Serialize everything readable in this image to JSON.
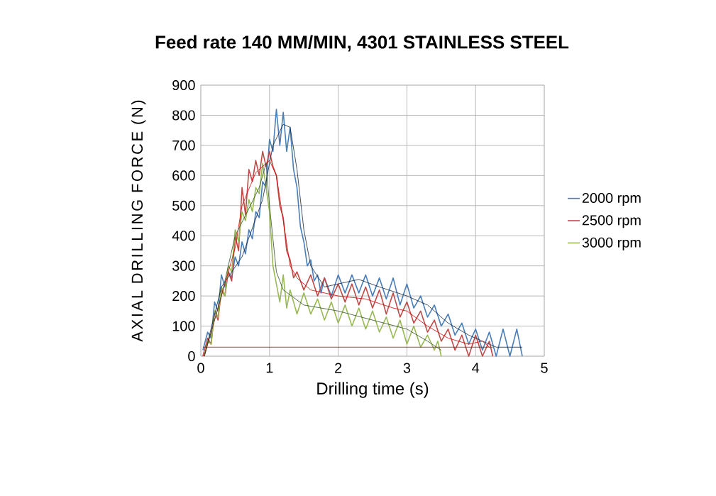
{
  "chart_data": {
    "type": "line",
    "title": "Feed rate 140 MM/MIN, 4301 STAINLESS STEEL",
    "xlabel": "Drilling time (s)",
    "ylabel": "AXIAL DRILLING FORCE (N)",
    "xlim": [
      0,
      5
    ],
    "xticks": [
      0,
      1,
      2,
      3,
      4,
      5
    ],
    "ylim": [
      0,
      900
    ],
    "yticks": [
      0,
      100,
      200,
      300,
      400,
      500,
      600,
      700,
      800,
      900
    ],
    "grid": true,
    "legend": "right",
    "marker": "none",
    "series": [
      {
        "name": "2000 rpm",
        "color": "#4a7ebb",
        "x": [
          0.03,
          0.1,
          0.15,
          0.2,
          0.25,
          0.3,
          0.35,
          0.4,
          0.45,
          0.5,
          0.55,
          0.6,
          0.65,
          0.7,
          0.75,
          0.8,
          0.85,
          0.9,
          0.95,
          1.0,
          1.05,
          1.1,
          1.15,
          1.2,
          1.25,
          1.3,
          1.35,
          1.4,
          1.45,
          1.5,
          1.55,
          1.6,
          1.65,
          1.7,
          1.75,
          1.8,
          1.9,
          2.0,
          2.1,
          2.2,
          2.3,
          2.4,
          2.5,
          2.6,
          2.7,
          2.8,
          2.9,
          3.0,
          3.1,
          3.2,
          3.3,
          3.4,
          3.5,
          3.6,
          3.7,
          3.8,
          3.9,
          4.0,
          4.1,
          4.2,
          4.3,
          4.4,
          4.5,
          4.6,
          4.68
        ],
        "values": [
          20,
          80,
          60,
          180,
          150,
          270,
          230,
          280,
          260,
          330,
          300,
          380,
          340,
          420,
          390,
          480,
          460,
          580,
          560,
          720,
          680,
          820,
          700,
          810,
          680,
          760,
          620,
          560,
          430,
          380,
          300,
          320,
          250,
          270,
          210,
          260,
          200,
          270,
          210,
          270,
          210,
          270,
          200,
          260,
          190,
          260,
          170,
          240,
          160,
          200,
          130,
          170,
          100,
          140,
          70,
          110,
          40,
          90,
          20,
          80,
          0,
          90,
          0,
          90,
          0
        ]
      },
      {
        "name": "2500 rpm",
        "color": "#be4b48",
        "x": [
          0.03,
          0.1,
          0.15,
          0.2,
          0.25,
          0.3,
          0.35,
          0.4,
          0.45,
          0.5,
          0.55,
          0.6,
          0.65,
          0.7,
          0.75,
          0.8,
          0.85,
          0.9,
          0.95,
          1.0,
          1.05,
          1.1,
          1.15,
          1.2,
          1.25,
          1.3,
          1.35,
          1.4,
          1.5,
          1.6,
          1.7,
          1.8,
          1.9,
          2.0,
          2.1,
          2.2,
          2.3,
          2.4,
          2.5,
          2.6,
          2.7,
          2.8,
          2.9,
          3.0,
          3.1,
          3.2,
          3.3,
          3.4,
          3.5,
          3.6,
          3.7,
          3.8,
          3.9,
          4.0,
          4.1,
          4.2,
          4.25
        ],
        "values": [
          0,
          60,
          40,
          150,
          120,
          220,
          200,
          280,
          250,
          400,
          350,
          560,
          470,
          620,
          580,
          650,
          600,
          680,
          630,
          680,
          630,
          600,
          500,
          460,
          350,
          320,
          260,
          280,
          220,
          270,
          200,
          260,
          190,
          240,
          180,
          240,
          170,
          230,
          160,
          220,
          140,
          210,
          130,
          180,
          110,
          150,
          80,
          120,
          50,
          90,
          20,
          70,
          0,
          70,
          0,
          50,
          0
        ]
      },
      {
        "name": "3000 rpm",
        "color": "#98b954",
        "x": [
          0.05,
          0.1,
          0.15,
          0.2,
          0.25,
          0.3,
          0.35,
          0.4,
          0.45,
          0.5,
          0.55,
          0.6,
          0.65,
          0.7,
          0.75,
          0.8,
          0.85,
          0.9,
          0.95,
          1.0,
          1.05,
          1.1,
          1.15,
          1.2,
          1.25,
          1.3,
          1.4,
          1.5,
          1.6,
          1.7,
          1.8,
          1.9,
          2.0,
          2.1,
          2.2,
          2.3,
          2.4,
          2.5,
          2.6,
          2.7,
          2.8,
          2.9,
          3.0,
          3.1,
          3.2,
          3.3,
          3.4,
          3.45,
          3.5
        ],
        "values": [
          0,
          50,
          40,
          150,
          130,
          230,
          200,
          300,
          280,
          420,
          380,
          480,
          450,
          520,
          480,
          560,
          540,
          640,
          560,
          480,
          300,
          240,
          180,
          270,
          160,
          220,
          140,
          210,
          140,
          190,
          120,
          180,
          110,
          170,
          100,
          160,
          90,
          150,
          80,
          130,
          60,
          120,
          40,
          100,
          30,
          70,
          20,
          50,
          0
        ]
      },
      {
        "color": "#0f243e",
        "x": [
          0.05,
          0.3,
          0.6,
          0.9,
          1.05,
          1.2,
          1.3,
          1.4,
          1.5,
          1.6,
          1.8,
          2.0,
          2.3,
          2.6,
          3.0,
          3.3,
          3.6,
          3.9,
          4.2,
          4.3,
          4.68
        ],
        "values": [
          0,
          230,
          330,
          520,
          700,
          770,
          760,
          620,
          420,
          300,
          230,
          240,
          255,
          230,
          200,
          170,
          110,
          70,
          40,
          30,
          30
        ]
      },
      {
        "color": "#d40000",
        "x": [
          0.05,
          0.3,
          0.5,
          0.6,
          0.8,
          1.0,
          1.1,
          1.2,
          1.3,
          1.4,
          1.6,
          2.0,
          2.4,
          2.8,
          3.0,
          3.3,
          3.6,
          3.9,
          4.1,
          4.2
        ],
        "values": [
          0,
          200,
          360,
          500,
          610,
          650,
          600,
          450,
          300,
          260,
          220,
          200,
          190,
          160,
          150,
          100,
          60,
          40,
          50,
          30
        ]
      },
      {
        "color": "#2f4f1f",
        "x": [
          0.05,
          0.3,
          0.5,
          0.7,
          0.85,
          0.95,
          1.0,
          1.1,
          1.2,
          1.5,
          2.0,
          2.5,
          3.0,
          3.3,
          3.5
        ],
        "values": [
          0,
          200,
          400,
          490,
          560,
          640,
          500,
          280,
          220,
          170,
          150,
          120,
          90,
          50,
          20
        ]
      },
      {
        "color": "#7b1f1f",
        "x": [
          0.03,
          4.25
        ],
        "values": [
          30,
          30
        ]
      }
    ]
  }
}
